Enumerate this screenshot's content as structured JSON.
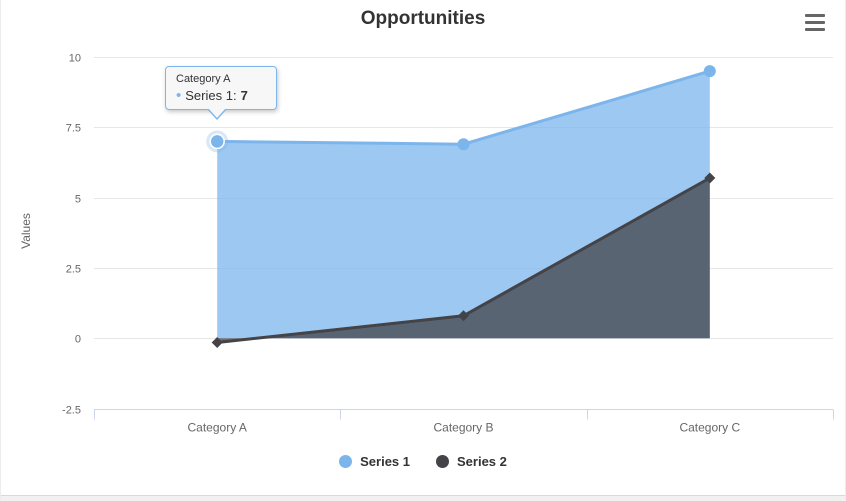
{
  "title": "Opportunities",
  "toolbar": {
    "menu_icon": "hamburger"
  },
  "y_axis": {
    "title": "Values"
  },
  "x_axis": {
    "categories": [
      "Category A",
      "Category B",
      "Category C"
    ]
  },
  "legend": {
    "items": [
      {
        "label": "Series 1",
        "color": "#7cb5ec"
      },
      {
        "label": "Series 2",
        "color": "#434348"
      }
    ]
  },
  "tooltip": {
    "header": "Category A",
    "bullet": "•",
    "series_label": "Series 1:",
    "value": "7"
  },
  "colors": {
    "series1": "#7cb5ec",
    "series2": "#434348",
    "grid": "#e6e6e6",
    "axis_line": "#ccd6eb",
    "labels": "#666666",
    "title": "#333333",
    "tooltip_border": "#7cb5ec",
    "tooltip_bg": "#f7f7f7"
  },
  "chart_data": {
    "type": "area",
    "title": "Opportunities",
    "xlabel": "",
    "ylabel": "Values",
    "categories": [
      "Category A",
      "Category B",
      "Category C"
    ],
    "series": [
      {
        "name": "Series 1",
        "color": "#7cb5ec",
        "marker": "circle",
        "values": [
          7,
          6.9,
          9.5
        ]
      },
      {
        "name": "Series 2",
        "color": "#434348",
        "marker": "diamond",
        "values": [
          -0.15,
          0.8,
          5.7
        ]
      }
    ],
    "yticks": [
      10,
      7.5,
      5,
      2.5,
      0,
      -2.5
    ],
    "ytick_labels": [
      "10",
      "7.5",
      "5",
      "2.5",
      "0",
      "-2.5"
    ],
    "ylim": [
      -2.5,
      10.5
    ],
    "grid": true,
    "fill_opacity": 0.75,
    "line_width": 3,
    "legend_position": "bottom",
    "highlighted_point": {
      "series": "Series 1",
      "category": "Category A",
      "value": 7
    }
  }
}
